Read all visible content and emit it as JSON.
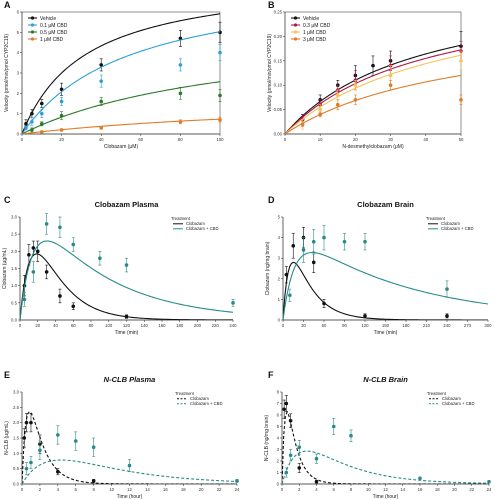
{
  "colors": {
    "vehicle": "#111111",
    "cbd_blue": "#2e9fd6",
    "cbd_red": "#b0184a",
    "cbd_green": "#2b7a2b",
    "cbd_yellow": "#f5c25a",
    "cbd_orange": "#e07b28",
    "combo_teal": "#2a8a8a"
  },
  "chart_data": [
    {
      "panel": "A",
      "type": "line",
      "title": "",
      "xlabel": "Clobazam (μM)",
      "ylabel": "Velocity (pmol/min/pmol CYP2C19)",
      "xlim": [
        0,
        100
      ],
      "ylim": [
        0,
        6
      ],
      "xticks": [
        "0",
        "20",
        "40",
        "60",
        "80",
        "100"
      ],
      "yticks": [
        "0",
        "1",
        "2",
        "3",
        "4",
        "5",
        "6"
      ],
      "legend": {
        "position": "top-left",
        "entries": [
          "Vehicle",
          "0.1 μM CBD",
          "0.5 μM CBD",
          "1 μM CBD"
        ]
      },
      "series": [
        {
          "name": "Vehicle",
          "color": "vehicle",
          "fit": {
            "vmax": 7.8,
            "km": 32
          },
          "points": [
            [
              2,
              0.5,
              0.2
            ],
            [
              5,
              1.0,
              0.2
            ],
            [
              10,
              1.5,
              0.2
            ],
            [
              20,
              2.2,
              0.3
            ],
            [
              40,
              3.4,
              0.3
            ],
            [
              80,
              4.7,
              0.4
            ],
            [
              100,
              5.0,
              0.5
            ]
          ]
        },
        {
          "name": "0.1 μM CBD",
          "color": "cbd_blue",
          "fit": {
            "vmax": 7.8,
            "km": 55
          },
          "points": [
            [
              2,
              0.3,
              0.1
            ],
            [
              5,
              0.6,
              0.2
            ],
            [
              10,
              1.0,
              0.2
            ],
            [
              20,
              1.6,
              0.2
            ],
            [
              40,
              2.6,
              0.3
            ],
            [
              80,
              3.4,
              0.3
            ],
            [
              100,
              4.0,
              0.4
            ]
          ]
        },
        {
          "name": "0.5 μM CBD",
          "color": "cbd_green",
          "fit": {
            "vmax": 5.4,
            "km": 110
          },
          "points": [
            [
              5,
              0.2,
              0.1
            ],
            [
              10,
              0.5,
              0.1
            ],
            [
              20,
              0.9,
              0.2
            ],
            [
              40,
              1.6,
              0.2
            ],
            [
              80,
              2.0,
              0.3
            ],
            [
              100,
              1.9,
              0.3
            ]
          ]
        },
        {
          "name": "1 μM CBD",
          "color": "cbd_orange",
          "fit": {
            "vmax": 1.9,
            "km": 160
          },
          "points": [
            [
              10,
              0.1,
              0.05
            ],
            [
              20,
              0.2,
              0.05
            ],
            [
              40,
              0.3,
              0.05
            ],
            [
              80,
              0.6,
              0.1
            ],
            [
              100,
              0.7,
              0.1
            ]
          ]
        }
      ]
    },
    {
      "panel": "B",
      "type": "line",
      "title": "",
      "xlabel": "N-desmethylclobazam (μM)",
      "ylabel": "Velocity (pmol/min/pmol CYP2C19)",
      "xlim": [
        0,
        50
      ],
      "ylim": [
        0,
        0.25
      ],
      "xticks": [
        "0",
        "10",
        "20",
        "30",
        "40",
        "50"
      ],
      "yticks": [
        "0.00",
        "0.05",
        "0.10",
        "0.15",
        "0.20",
        "0.25"
      ],
      "legend": {
        "position": "top-left",
        "entries": [
          "Vehicle",
          "0.3 μM CBD",
          "1 μM CBD",
          "3 μM CBD"
        ]
      },
      "series": [
        {
          "name": "Vehicle",
          "color": "vehicle",
          "fit": {
            "vmax": 0.32,
            "km": 38
          },
          "points": [
            [
              5,
              0.03,
              0.01
            ],
            [
              10,
              0.07,
              0.01
            ],
            [
              15,
              0.1,
              0.01
            ],
            [
              20,
              0.12,
              0.02
            ],
            [
              25,
              0.14,
              0.02
            ],
            [
              30,
              0.15,
              0.02
            ],
            [
              50,
              0.18,
              0.03
            ]
          ]
        },
        {
          "name": "0.3 μM CBD",
          "color": "cbd_red",
          "fit": {
            "vmax": 0.31,
            "km": 40
          },
          "points": [
            [
              5,
              0.03,
              0.01
            ],
            [
              10,
              0.06,
              0.01
            ],
            [
              15,
              0.09,
              0.01
            ],
            [
              20,
              0.11,
              0.02
            ],
            [
              30,
              0.14,
              0.02
            ],
            [
              50,
              0.17,
              0.02
            ]
          ]
        },
        {
          "name": "1 μM CBD",
          "color": "cbd_yellow",
          "fit": {
            "vmax": 0.31,
            "km": 46
          },
          "points": [
            [
              5,
              0.02,
              0.01
            ],
            [
              10,
              0.05,
              0.01
            ],
            [
              15,
              0.08,
              0.01
            ],
            [
              20,
              0.1,
              0.01
            ],
            [
              30,
              0.12,
              0.02
            ],
            [
              50,
              0.15,
              0.02
            ]
          ]
        },
        {
          "name": "3 μM CBD",
          "color": "cbd_orange",
          "fit": {
            "vmax": 0.24,
            "km": 50
          },
          "points": [
            [
              5,
              0.02,
              0.005
            ],
            [
              10,
              0.04,
              0.005
            ],
            [
              15,
              0.06,
              0.01
            ],
            [
              20,
              0.07,
              0.01
            ],
            [
              30,
              0.1,
              0.01
            ],
            [
              50,
              0.07,
              0.01
            ]
          ]
        }
      ]
    },
    {
      "panel": "C",
      "type": "line",
      "title": "Clobazam Plasma",
      "xlabel": "Time (min)",
      "ylabel": "Clobazam (µg/mL)",
      "xlim": [
        0,
        240
      ],
      "ylim": [
        0,
        3
      ],
      "xticks": [
        "0",
        "20",
        "40",
        "60",
        "80",
        "100",
        "120",
        "140",
        "160",
        "180",
        "200",
        "220",
        "240"
      ],
      "yticks": [
        "0.0",
        "0.5",
        "1.0",
        "1.5",
        "2.0",
        "2.5",
        "3.0"
      ],
      "legend": {
        "position": "top-right",
        "title": "Treatment",
        "entries": [
          "Clobazam",
          "Clobazam + CBD"
        ]
      },
      "series": [
        {
          "name": "Clobazam",
          "color": "vehicle",
          "style": "solid",
          "pk": {
            "a": 7.3,
            "ka": 0.075,
            "ke": 0.036
          },
          "points": [
            [
              5,
              1.0,
              0.3
            ],
            [
              10,
              1.9,
              0.3
            ],
            [
              15,
              2.1,
              0.2
            ],
            [
              20,
              2.0,
              0.3
            ],
            [
              30,
              1.4,
              0.2
            ],
            [
              45,
              0.7,
              0.2
            ],
            [
              60,
              0.4,
              0.1
            ],
            [
              120,
              0.1,
              0.05
            ]
          ]
        },
        {
          "name": "Clobazam + CBD",
          "color": "combo_teal",
          "style": "solid",
          "pk": {
            "a": 4.0,
            "ka": 0.07,
            "ke": 0.012
          },
          "points": [
            [
              5,
              0.6,
              0.2
            ],
            [
              15,
              1.4,
              0.3
            ],
            [
              30,
              2.8,
              0.3
            ],
            [
              45,
              2.7,
              0.3
            ],
            [
              60,
              2.2,
              0.2
            ],
            [
              90,
              1.8,
              0.2
            ],
            [
              120,
              1.6,
              0.2
            ],
            [
              240,
              0.5,
              0.1
            ]
          ]
        }
      ]
    },
    {
      "panel": "D",
      "type": "line",
      "title": "Clobazam Brain",
      "xlabel": "Time (min)",
      "ylabel": "Clobazam (ng/mg brain)",
      "xlim": [
        0,
        300
      ],
      "ylim": [
        0,
        5
      ],
      "xticks": [
        "0",
        "30",
        "60",
        "90",
        "120",
        "150",
        "180",
        "210",
        "240",
        "270",
        "300"
      ],
      "yticks": [
        "0",
        "1",
        "2",
        "3",
        "4",
        "5"
      ],
      "legend": {
        "position": "top-right",
        "title": "Treatment",
        "entries": [
          "Clobazam",
          "Clobazam + CBD"
        ]
      },
      "series": [
        {
          "name": "Clobazam",
          "color": "vehicle",
          "style": "solid",
          "pk": {
            "a": 7.0,
            "ka": 0.11,
            "ke": 0.035
          },
          "points": [
            [
              5,
              2.2,
              0.4
            ],
            [
              15,
              3.6,
              0.6
            ],
            [
              30,
              4.0,
              0.5
            ],
            [
              45,
              2.8,
              0.5
            ],
            [
              60,
              0.8,
              0.2
            ],
            [
              120,
              0.2,
              0.1
            ],
            [
              240,
              0.2,
              0.1
            ]
          ]
        },
        {
          "name": "Clobazam + CBD",
          "color": "combo_teal",
          "style": "solid",
          "pk": {
            "a": 4.7,
            "ka": 0.06,
            "ke": 0.006
          },
          "points": [
            [
              10,
              1.2,
              0.3
            ],
            [
              30,
              3.4,
              0.6
            ],
            [
              45,
              3.8,
              0.6
            ],
            [
              60,
              4.0,
              0.6
            ],
            [
              90,
              3.8,
              0.4
            ],
            [
              120,
              3.8,
              0.4
            ],
            [
              240,
              1.5,
              0.4
            ]
          ]
        }
      ]
    },
    {
      "panel": "E",
      "type": "line",
      "title": "N-CLB Plasma",
      "xlabel": "Time (hour)",
      "ylabel": "N-CLB (μg/mL)",
      "xlim": [
        0,
        24
      ],
      "ylim": [
        0,
        3
      ],
      "xticks": [
        "0",
        "2",
        "4",
        "6",
        "8",
        "10",
        "12",
        "14",
        "16",
        "18",
        "20",
        "22",
        "24"
      ],
      "yticks": [
        "0.0",
        "0.5",
        "1.0",
        "1.5",
        "2.0",
        "2.5",
        "3.0"
      ],
      "legend": {
        "position": "top-right",
        "title": "Treatment",
        "entries": [
          "Clobazam",
          "Clobazam + CBD"
        ]
      },
      "series": [
        {
          "name": "Clobazam",
          "color": "vehicle",
          "style": "dash",
          "pk": {
            "a": 6.0,
            "ka": 2.0,
            "ke": 0.65
          },
          "points": [
            [
              0.25,
              1.5,
              0.3
            ],
            [
              0.5,
              2.0,
              0.3
            ],
            [
              1,
              2.0,
              0.3
            ],
            [
              2,
              1.3,
              0.3
            ],
            [
              4,
              0.4,
              0.1
            ],
            [
              8,
              0.1,
              0.05
            ]
          ]
        },
        {
          "name": "Clobazam + CBD",
          "color": "combo_teal",
          "style": "dash",
          "pk": {
            "a": 2.4,
            "ka": 0.35,
            "ke": 0.14
          },
          "points": [
            [
              0.5,
              0.5,
              0.2
            ],
            [
              1,
              0.7,
              0.2
            ],
            [
              2,
              1.1,
              0.3
            ],
            [
              4,
              1.6,
              0.3
            ],
            [
              6,
              1.4,
              0.3
            ],
            [
              8,
              1.2,
              0.3
            ],
            [
              12,
              0.6,
              0.2
            ],
            [
              24,
              0.1,
              0.05
            ]
          ]
        }
      ]
    },
    {
      "panel": "F",
      "type": "line",
      "title": "N-CLB Brain",
      "xlabel": "Time (hour)",
      "ylabel": "N-CLB (ng/mg brain)",
      "xlim": [
        0,
        24
      ],
      "ylim": [
        0,
        8
      ],
      "xticks": [
        "0",
        "2",
        "4",
        "6",
        "8",
        "10",
        "12",
        "14",
        "16",
        "18",
        "20",
        "22",
        "24"
      ],
      "yticks": [
        "0",
        "1",
        "2",
        "3",
        "4",
        "5",
        "6",
        "7",
        "8"
      ],
      "legend": {
        "position": "top-right",
        "title": "Treatment",
        "entries": [
          "Clobazam",
          "Clobazam + CBD"
        ]
      },
      "series": [
        {
          "name": "Clobazam",
          "color": "vehicle",
          "style": "dash",
          "pk": {
            "a": 15.0,
            "ka": 3.0,
            "ke": 0.9
          },
          "points": [
            [
              0.25,
              6.5,
              0.8
            ],
            [
              0.5,
              7.0,
              0.7
            ],
            [
              1,
              5.5,
              0.6
            ],
            [
              2,
              1.4,
              0.4
            ],
            [
              4,
              0.2,
              0.1
            ]
          ]
        },
        {
          "name": "Clobazam + CBD",
          "color": "combo_teal",
          "style": "dash",
          "pk": {
            "a": 8.0,
            "ka": 0.55,
            "ke": 0.2
          },
          "points": [
            [
              0.5,
              1.0,
              0.4
            ],
            [
              1,
              2.5,
              0.5
            ],
            [
              2,
              3.2,
              0.6
            ],
            [
              4,
              2.2,
              0.4
            ],
            [
              6,
              5.0,
              0.7
            ],
            [
              8,
              4.2,
              0.5
            ],
            [
              16,
              0.5,
              0.1
            ],
            [
              24,
              0.2,
              0.05
            ]
          ]
        }
      ]
    }
  ]
}
